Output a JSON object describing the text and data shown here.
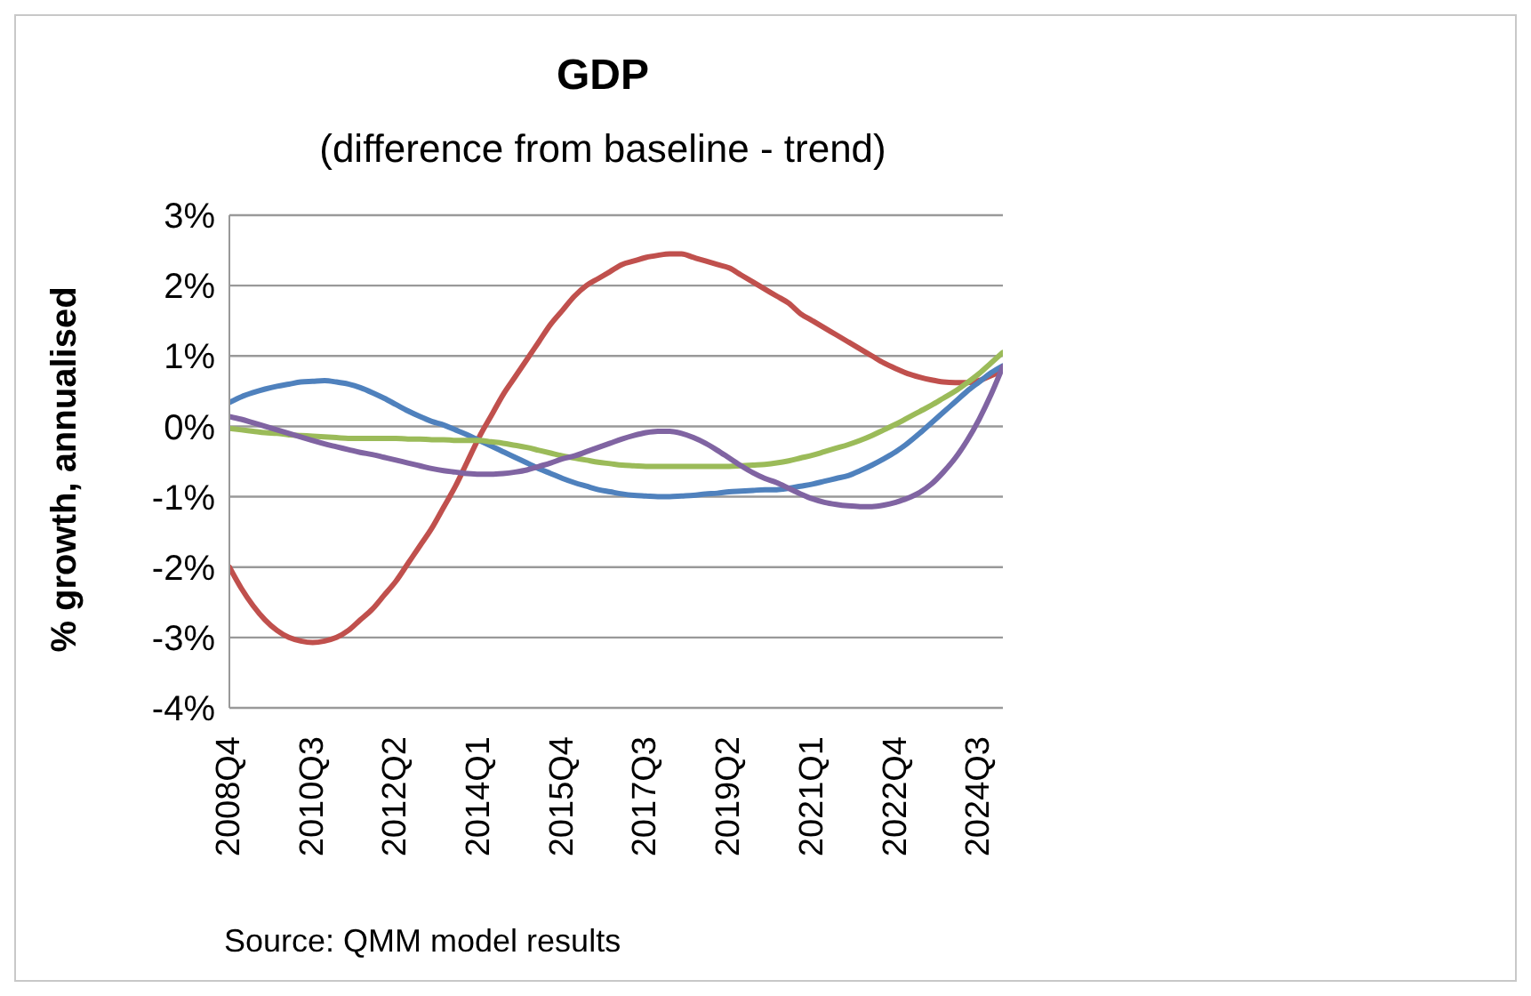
{
  "chart_data": {
    "type": "line",
    "title": "GDP",
    "subtitle": "(difference from baseline - trend)",
    "ylabel": "% growth, annualised",
    "categories": [
      "2008Q4",
      null,
      null,
      null,
      null,
      null,
      null,
      "2010Q3",
      null,
      null,
      null,
      null,
      null,
      null,
      "2012Q2",
      null,
      null,
      null,
      null,
      null,
      null,
      "2014Q1",
      null,
      null,
      null,
      null,
      null,
      null,
      "2015Q4",
      null,
      null,
      null,
      null,
      null,
      null,
      "2017Q3",
      null,
      null,
      null,
      null,
      null,
      null,
      "2019Q2",
      null,
      null,
      null,
      null,
      null,
      null,
      "2021Q1",
      null,
      null,
      null,
      null,
      null,
      null,
      "2022Q4",
      null,
      null,
      null,
      null,
      null,
      null,
      "2024Q3",
      null,
      null
    ],
    "series": [
      {
        "color": "#c0504d",
        "values": [
          -2.0,
          -2.3,
          -2.55,
          -2.75,
          -2.9,
          -3.0,
          -3.05,
          -3.07,
          -3.05,
          -3.0,
          -2.9,
          -2.75,
          -2.6,
          -2.4,
          -2.2,
          -1.95,
          -1.7,
          -1.45,
          -1.15,
          -0.85,
          -0.5,
          -0.15,
          0.15,
          0.45,
          0.7,
          0.95,
          1.2,
          1.45,
          1.65,
          1.85,
          2.0,
          2.1,
          2.2,
          2.3,
          2.35,
          2.4,
          2.43,
          2.45,
          2.45,
          2.4,
          2.35,
          2.3,
          2.25,
          2.15,
          2.05,
          1.95,
          1.85,
          1.75,
          1.6,
          1.5,
          1.4,
          1.3,
          1.2,
          1.1,
          1.0,
          0.9,
          0.82,
          0.75,
          0.7,
          0.66,
          0.63,
          0.62,
          0.62,
          0.65,
          0.72,
          0.8
        ]
      },
      {
        "color": "#4f81bd",
        "values": [
          0.34,
          0.42,
          0.48,
          0.53,
          0.57,
          0.6,
          0.63,
          0.64,
          0.65,
          0.63,
          0.6,
          0.55,
          0.48,
          0.4,
          0.31,
          0.22,
          0.14,
          0.07,
          0.02,
          -0.05,
          -0.12,
          -0.2,
          -0.28,
          -0.36,
          -0.44,
          -0.52,
          -0.6,
          -0.67,
          -0.74,
          -0.8,
          -0.85,
          -0.9,
          -0.93,
          -0.96,
          -0.98,
          -0.99,
          -1.0,
          -1.0,
          -0.99,
          -0.98,
          -0.96,
          -0.95,
          -0.93,
          -0.92,
          -0.91,
          -0.9,
          -0.9,
          -0.88,
          -0.85,
          -0.82,
          -0.78,
          -0.74,
          -0.7,
          -0.63,
          -0.55,
          -0.46,
          -0.36,
          -0.24,
          -0.1,
          0.05,
          0.2,
          0.35,
          0.5,
          0.63,
          0.76,
          0.86
        ]
      },
      {
        "color": "#9bbb59",
        "values": [
          -0.03,
          -0.05,
          -0.07,
          -0.09,
          -0.1,
          -0.12,
          -0.13,
          -0.14,
          -0.15,
          -0.16,
          -0.17,
          -0.17,
          -0.17,
          -0.17,
          -0.17,
          -0.18,
          -0.18,
          -0.19,
          -0.19,
          -0.2,
          -0.2,
          -0.2,
          -0.22,
          -0.24,
          -0.27,
          -0.3,
          -0.34,
          -0.38,
          -0.42,
          -0.45,
          -0.48,
          -0.51,
          -0.53,
          -0.55,
          -0.56,
          -0.57,
          -0.57,
          -0.57,
          -0.57,
          -0.57,
          -0.57,
          -0.57,
          -0.57,
          -0.56,
          -0.55,
          -0.54,
          -0.52,
          -0.49,
          -0.45,
          -0.41,
          -0.36,
          -0.31,
          -0.26,
          -0.2,
          -0.13,
          -0.05,
          0.03,
          0.12,
          0.21,
          0.3,
          0.4,
          0.5,
          0.62,
          0.75,
          0.9,
          1.05
        ]
      },
      {
        "color": "#8064a2",
        "values": [
          0.14,
          0.1,
          0.05,
          0.0,
          -0.05,
          -0.1,
          -0.15,
          -0.2,
          -0.25,
          -0.29,
          -0.33,
          -0.37,
          -0.4,
          -0.44,
          -0.48,
          -0.52,
          -0.56,
          -0.6,
          -0.63,
          -0.65,
          -0.67,
          -0.68,
          -0.68,
          -0.67,
          -0.65,
          -0.62,
          -0.57,
          -0.52,
          -0.46,
          -0.42,
          -0.36,
          -0.3,
          -0.24,
          -0.18,
          -0.13,
          -0.09,
          -0.07,
          -0.07,
          -0.1,
          -0.16,
          -0.24,
          -0.34,
          -0.45,
          -0.56,
          -0.66,
          -0.74,
          -0.8,
          -0.88,
          -0.96,
          -1.03,
          -1.08,
          -1.11,
          -1.13,
          -1.14,
          -1.14,
          -1.12,
          -1.08,
          -1.02,
          -0.94,
          -0.82,
          -0.65,
          -0.45,
          -0.2,
          0.1,
          0.45,
          0.85
        ]
      }
    ],
    "ylim": [
      -4,
      3
    ],
    "yticks": [
      {
        "value": -4,
        "label": "-4%"
      },
      {
        "value": -3,
        "label": "-3%"
      },
      {
        "value": -2,
        "label": "-2%"
      },
      {
        "value": -1,
        "label": "-1%"
      },
      {
        "value": 0,
        "label": "0%"
      },
      {
        "value": 1,
        "label": "1%"
      },
      {
        "value": 2,
        "label": "2%"
      },
      {
        "value": 3,
        "label": "3%"
      }
    ],
    "grid": "y",
    "annotations": [
      "Source: QMM model results"
    ]
  }
}
